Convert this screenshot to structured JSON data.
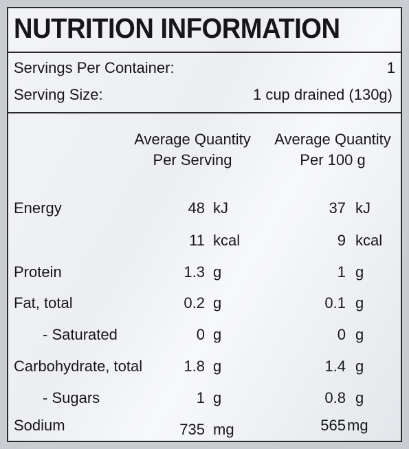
{
  "title": "NUTRITION INFORMATION",
  "servings": {
    "label": "Servings Per Container:",
    "value": "1"
  },
  "serving_size": {
    "label": "Serving Size:",
    "value": "1 cup drained (130g)"
  },
  "columns": {
    "per_serving": [
      "Average Quantity",
      "Per Serving"
    ],
    "per_100g": [
      "Average Quantity",
      "Per 100 g"
    ]
  },
  "rows": [
    {
      "label": "Energy",
      "serving_value": "48",
      "serving_unit": "kJ",
      "per100_value": "37",
      "per100_unit": "kJ"
    },
    {
      "label": "",
      "serving_value": "11",
      "serving_unit": "kcal",
      "per100_value": "9",
      "per100_unit": "kcal"
    },
    {
      "label": "Protein",
      "serving_value": "1.3",
      "serving_unit": "g",
      "per100_value": "1",
      "per100_unit": "g"
    },
    {
      "label": "Fat, total",
      "serving_value": "0.2",
      "serving_unit": "g",
      "per100_value": "0.1",
      "per100_unit": "g"
    },
    {
      "label": "- Saturated",
      "serving_value": "0",
      "serving_unit": "g",
      "per100_value": "0",
      "per100_unit": "g"
    },
    {
      "label": "Carbohydrate, total",
      "serving_value": "1.8",
      "serving_unit": "g",
      "per100_value": "1.4",
      "per100_unit": "g"
    },
    {
      "label": "- Sugars",
      "serving_value": "1",
      "serving_unit": "g",
      "per100_value": "0.8",
      "per100_unit": "g"
    },
    {
      "label": "Sodium",
      "serving_value": "735",
      "serving_unit": "mg",
      "per100_value": "565",
      "per100_unit": "mg"
    }
  ]
}
